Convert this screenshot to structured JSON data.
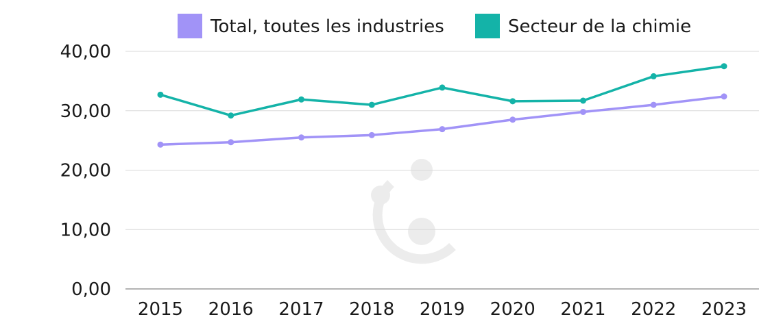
{
  "chart_data": {
    "type": "line",
    "title": "",
    "xlabel": "",
    "ylabel": "",
    "categories": [
      "2015",
      "2016",
      "2017",
      "2018",
      "2019",
      "2020",
      "2021",
      "2022",
      "2023"
    ],
    "ylim": [
      0,
      40
    ],
    "yticks": [
      "0,00",
      "10,00",
      "20,00",
      "30,00",
      "40,00"
    ],
    "grid": true,
    "legend_position": "top",
    "series": [
      {
        "name": "Total, toutes les industries",
        "color": "#a193f7",
        "values": [
          24.3,
          24.7,
          25.5,
          25.9,
          26.9,
          28.5,
          29.8,
          31.0,
          32.4
        ]
      },
      {
        "name": "Secteur de la chimie",
        "color": "#14b3a8",
        "values": [
          32.7,
          29.2,
          31.9,
          31.0,
          33.9,
          31.6,
          31.7,
          35.8,
          37.5
        ]
      }
    ]
  }
}
